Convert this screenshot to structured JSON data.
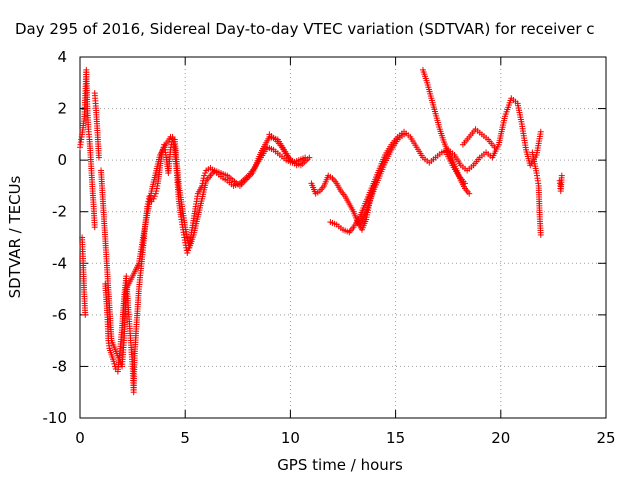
{
  "chart_data": {
    "type": "scatter",
    "title": "Day 295 of 2016, Sidereal Day-to-day VTEC variation (SDTVAR) for receiver c",
    "xlabel": "GPS time / hours",
    "ylabel": "SDTVAR / TECUs",
    "xlim": [
      0,
      25
    ],
    "ylim": [
      -10,
      4
    ],
    "xticks": [
      0,
      5,
      10,
      15,
      20,
      25
    ],
    "yticks": [
      -10,
      -8,
      -6,
      -4,
      -2,
      0,
      2,
      4
    ],
    "grid": true,
    "marker": "+",
    "color": "#ff0000",
    "series": [
      {
        "name": "SDTVAR",
        "segments": [
          [
            [
              0.0,
              0.5
            ],
            [
              0.1,
              1.0
            ],
            [
              0.2,
              1.6
            ],
            [
              0.25,
              2.5
            ],
            [
              0.3,
              3.5
            ],
            [
              0.35,
              2.0
            ],
            [
              0.4,
              1.2
            ],
            [
              0.45,
              0.8
            ],
            [
              0.5,
              0.2
            ],
            [
              0.55,
              -0.5
            ],
            [
              0.6,
              -1.2
            ],
            [
              0.65,
              -1.8
            ],
            [
              0.7,
              -2.6
            ]
          ],
          [
            [
              0.1,
              -3.0
            ],
            [
              0.15,
              -4.0
            ],
            [
              0.2,
              -5.2
            ],
            [
              0.25,
              -6.0
            ]
          ],
          [
            [
              0.7,
              2.6
            ],
            [
              0.75,
              2.1
            ],
            [
              0.8,
              1.5
            ],
            [
              0.85,
              0.8
            ],
            [
              0.9,
              0.1
            ]
          ],
          [
            [
              1.2,
              -4.8
            ],
            [
              1.3,
              -6.0
            ],
            [
              1.35,
              -7.0
            ],
            [
              1.4,
              -7.3
            ],
            [
              1.6,
              -7.8
            ],
            [
              1.7,
              -8.1
            ],
            [
              1.8,
              -8.2
            ],
            [
              1.9,
              -7.4
            ],
            [
              2.0,
              -6.5
            ],
            [
              2.1,
              -5.3
            ],
            [
              2.2,
              -4.5
            ],
            [
              2.3,
              -5.8
            ],
            [
              2.4,
              -6.9
            ],
            [
              2.5,
              -8.0
            ],
            [
              2.55,
              -9.0
            ],
            [
              2.6,
              -7.5
            ],
            [
              2.7,
              -6.2
            ],
            [
              2.8,
              -5.0
            ],
            [
              2.9,
              -4.2
            ],
            [
              3.0,
              -3.4
            ],
            [
              3.1,
              -2.5
            ],
            [
              3.2,
              -1.8
            ],
            [
              3.3,
              -1.4
            ],
            [
              3.4,
              -1.6
            ],
            [
              3.5,
              -1.5
            ],
            [
              3.6,
              -1.3
            ],
            [
              3.7,
              -0.9
            ],
            [
              3.8,
              -0.3
            ],
            [
              3.9,
              0.3
            ],
            [
              4.0,
              0.6
            ],
            [
              4.1,
              0.1
            ],
            [
              4.2,
              -0.5
            ],
            [
              4.3,
              0.4
            ],
            [
              4.4,
              0.9
            ],
            [
              4.5,
              0.4
            ],
            [
              4.6,
              -0.5
            ],
            [
              4.7,
              -1.6
            ],
            [
              4.8,
              -2.2
            ],
            [
              4.9,
              -2.7
            ],
            [
              5.0,
              -3.2
            ],
            [
              5.1,
              -3.6
            ],
            [
              5.2,
              -3.3
            ],
            [
              5.3,
              -2.8
            ],
            [
              5.5,
              -1.8
            ],
            [
              5.6,
              -1.3
            ],
            [
              5.8,
              -1.0
            ],
            [
              5.9,
              -0.6
            ],
            [
              6.0,
              -0.4
            ],
            [
              6.2,
              -0.3
            ],
            [
              6.5,
              -0.5
            ],
            [
              6.8,
              -0.7
            ],
            [
              7.0,
              -0.8
            ],
            [
              7.3,
              -1.0
            ],
            [
              7.6,
              -0.9
            ],
            [
              8.0,
              -0.6
            ],
            [
              8.3,
              -0.3
            ],
            [
              8.6,
              0.1
            ],
            [
              8.9,
              0.5
            ],
            [
              9.2,
              0.4
            ],
            [
              9.5,
              0.2
            ],
            [
              9.8,
              0.0
            ],
            [
              10.1,
              -0.1
            ],
            [
              10.4,
              0.0
            ],
            [
              10.7,
              0.1
            ]
          ],
          [
            [
              1.0,
              -0.4
            ],
            [
              1.5,
              -7.0
            ],
            [
              2.0,
              -8.0
            ],
            [
              2.1,
              -6.9
            ],
            [
              2.2,
              -5.0
            ],
            [
              2.8,
              -4.0
            ],
            [
              3.0,
              -3.0
            ],
            [
              3.4,
              -1.2
            ],
            [
              3.8,
              0.2
            ],
            [
              4.0,
              0.5
            ],
            [
              4.3,
              0.9
            ],
            [
              4.5,
              0.8
            ],
            [
              4.7,
              -1.0
            ],
            [
              5.0,
              -2.6
            ],
            [
              5.2,
              -3.4
            ],
            [
              5.4,
              -2.9
            ],
            [
              5.6,
              -2.2
            ],
            [
              5.8,
              -1.5
            ],
            [
              6.0,
              -0.8
            ],
            [
              6.4,
              -0.4
            ],
            [
              7.0,
              -0.6
            ],
            [
              7.6,
              -1.0
            ],
            [
              8.2,
              -0.5
            ],
            [
              8.6,
              0.3
            ],
            [
              9.0,
              0.9
            ],
            [
              9.4,
              0.8
            ],
            [
              9.7,
              0.4
            ],
            [
              10.0,
              0.0
            ],
            [
              10.3,
              -0.2
            ],
            [
              10.6,
              0.0
            ]
          ],
          [
            [
              9.0,
              1.0
            ],
            [
              9.3,
              0.8
            ],
            [
              9.6,
              0.5
            ],
            [
              9.9,
              0.1
            ],
            [
              10.2,
              -0.1
            ],
            [
              10.5,
              -0.2
            ],
            [
              10.9,
              0.1
            ]
          ],
          [
            [
              11.0,
              -0.9
            ],
            [
              11.2,
              -1.3
            ],
            [
              11.4,
              -1.2
            ],
            [
              11.6,
              -1.0
            ],
            [
              11.8,
              -0.6
            ],
            [
              12.0,
              -0.7
            ],
            [
              12.2,
              -0.9
            ],
            [
              12.4,
              -1.2
            ],
            [
              12.6,
              -1.4
            ],
            [
              12.8,
              -1.7
            ],
            [
              13.0,
              -2.0
            ],
            [
              13.2,
              -2.4
            ],
            [
              13.4,
              -2.7
            ],
            [
              13.6,
              -2.3
            ],
            [
              13.8,
              -1.5
            ],
            [
              14.0,
              -0.9
            ]
          ],
          [
            [
              11.9,
              -2.4
            ],
            [
              12.2,
              -2.5
            ],
            [
              12.5,
              -2.7
            ],
            [
              12.8,
              -2.8
            ],
            [
              13.0,
              -2.6
            ],
            [
              13.3,
              -2.2
            ],
            [
              13.6,
              -1.6
            ],
            [
              13.9,
              -1.0
            ],
            [
              14.2,
              -0.4
            ],
            [
              14.5,
              0.2
            ],
            [
              14.8,
              0.6
            ],
            [
              15.1,
              0.9
            ],
            [
              15.4,
              1.1
            ],
            [
              15.7,
              0.9
            ],
            [
              16.0,
              0.5
            ],
            [
              16.3,
              0.1
            ],
            [
              16.6,
              -0.1
            ],
            [
              16.9,
              0.1
            ],
            [
              17.2,
              0.3
            ],
            [
              17.5,
              0.4
            ],
            [
              17.8,
              0.2
            ],
            [
              18.1,
              -0.2
            ],
            [
              18.4,
              -0.4
            ],
            [
              18.7,
              -0.2
            ],
            [
              19.0,
              0.1
            ],
            [
              19.3,
              0.3
            ],
            [
              19.6,
              0.1
            ],
            [
              19.9,
              0.6
            ],
            [
              20.2,
              1.7
            ],
            [
              20.5,
              2.4
            ],
            [
              20.8,
              2.2
            ],
            [
              21.0,
              1.4
            ],
            [
              21.2,
              0.4
            ],
            [
              21.4,
              -0.2
            ],
            [
              21.7,
              0.2
            ],
            [
              21.9,
              1.1
            ]
          ],
          [
            [
              13.3,
              -2.5
            ],
            [
              13.6,
              -2.0
            ],
            [
              13.9,
              -1.3
            ],
            [
              14.2,
              -0.7
            ],
            [
              14.5,
              -0.1
            ],
            [
              14.8,
              0.4
            ],
            [
              15.1,
              0.8
            ],
            [
              15.4,
              1.0
            ]
          ],
          [
            [
              16.3,
              3.5
            ],
            [
              16.5,
              3.0
            ],
            [
              16.7,
              2.4
            ],
            [
              16.9,
              1.8
            ],
            [
              17.1,
              1.2
            ],
            [
              17.3,
              0.7
            ],
            [
              17.5,
              0.3
            ],
            [
              17.7,
              0.0
            ],
            [
              17.9,
              -0.4
            ],
            [
              18.1,
              -0.8
            ],
            [
              18.3,
              -1.1
            ],
            [
              18.5,
              -1.3
            ]
          ],
          [
            [
              17.4,
              0.3
            ],
            [
              17.7,
              -0.2
            ],
            [
              18.0,
              -0.6
            ],
            [
              18.3,
              -0.9
            ]
          ],
          [
            [
              18.2,
              0.6
            ],
            [
              18.5,
              0.9
            ],
            [
              18.8,
              1.2
            ],
            [
              19.1,
              1.0
            ],
            [
              19.4,
              0.8
            ],
            [
              19.7,
              0.5
            ]
          ],
          [
            [
              21.5,
              0.3
            ],
            [
              21.7,
              -0.5
            ],
            [
              21.8,
              -1.0
            ],
            [
              21.85,
              -2.2
            ],
            [
              21.9,
              -2.9
            ]
          ],
          [
            [
              22.8,
              -0.8
            ],
            [
              22.85,
              -1.2
            ],
            [
              22.9,
              -0.6
            ]
          ]
        ]
      }
    ]
  }
}
